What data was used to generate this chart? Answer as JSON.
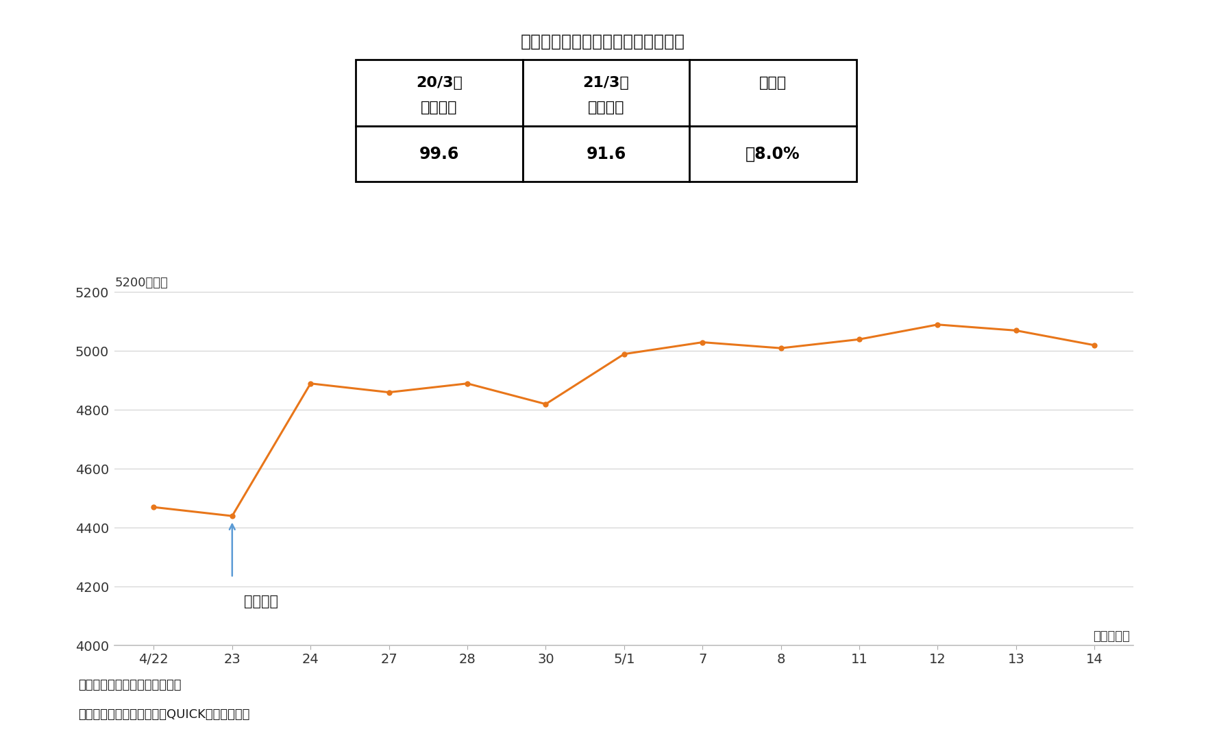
{
  "title": "》図表４「オービックの業績と株価",
  "title_full": "【図表４】オービックの業績と株価",
  "table_header_row1": [
    "20/3期",
    "21/3期",
    "増減率"
  ],
  "table_header_row2": [
    "（実績）",
    "（予想）",
    ""
  ],
  "table_values": [
    "99.6",
    "91.6",
    "－8.0%"
  ],
  "x_labels": [
    "4/22",
    "23",
    "24",
    "27",
    "28",
    "30",
    "5/1",
    "7",
    "8",
    "11",
    "12",
    "13",
    "14"
  ],
  "y_values": [
    4470,
    4440,
    4890,
    4860,
    4890,
    4820,
    4990,
    5030,
    5010,
    5040,
    5090,
    5070,
    5020
  ],
  "line_color": "#E8761A",
  "arrow_color": "#5B9BD5",
  "annotation_text": "決算発表",
  "ylabel_text": "5200（円）",
  "xlabel_text": "（月／日）",
  "note1": "（注）　業績は純利益（億円）",
  "note2": "（資料）　同社決算短信、QUICKより筆者作成",
  "ylim": [
    4000,
    5260
  ],
  "yticks": [
    4000,
    4200,
    4400,
    4600,
    4800,
    5000,
    5200
  ],
  "background_color": "#ffffff",
  "plot_bg_color": "#ffffff",
  "grid_color": "#d9d9d9",
  "border_color": "#bfbfbf",
  "title_fontsize": 18,
  "tick_fontsize": 14,
  "note_fontsize": 13,
  "table_header_fontsize": 16,
  "table_value_fontsize": 17,
  "annotation_fontsize": 15
}
